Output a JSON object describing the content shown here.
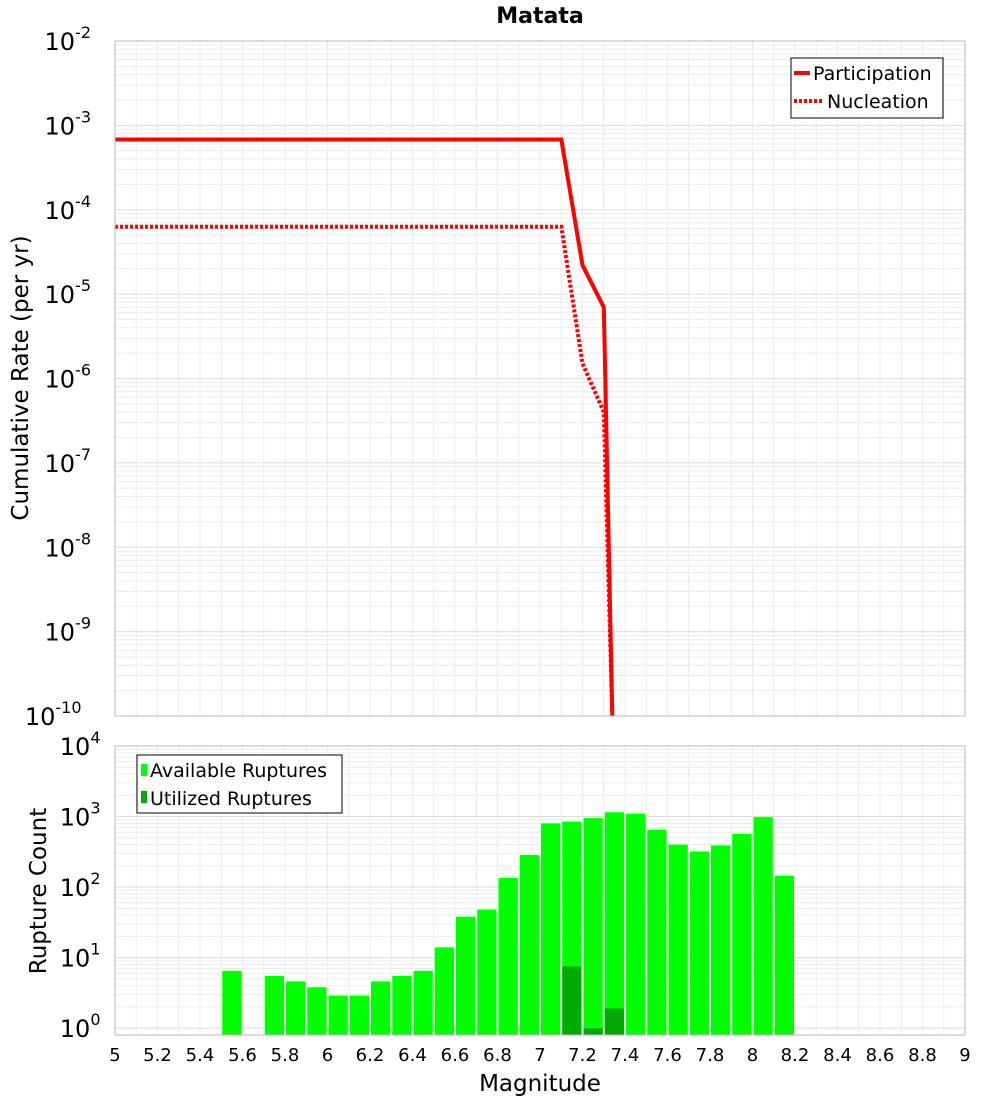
{
  "chart_data": [
    {
      "type": "line",
      "title": "Matata",
      "xlabel": "",
      "ylabel": "Cumulative Rate (per yr)",
      "y_scale": "log",
      "ylim": [
        1e-10,
        0.01
      ],
      "xlim": [
        5,
        9
      ],
      "grid": true,
      "legend_position": "top-right",
      "y_tick_exponents": [
        "-10",
        "-9",
        "-8",
        "-7",
        "-6",
        "-5",
        "-4",
        "-3",
        "-2"
      ],
      "y_tick_base": "10",
      "series": [
        {
          "name": "Participation",
          "style": "solid",
          "color": "#ff0000",
          "x": [
            5.0,
            7.1,
            7.2,
            7.3,
            7.34
          ],
          "y": [
            0.00068,
            0.00068,
            2.2e-05,
            7e-06,
            1e-10
          ]
        },
        {
          "name": "Nucleation",
          "style": "dotted",
          "color": "#ff0000",
          "x": [
            5.0,
            7.1,
            7.2,
            7.3,
            7.34
          ],
          "y": [
            6.3e-05,
            6.3e-05,
            1.5e-06,
            4e-07,
            1e-10
          ]
        }
      ]
    },
    {
      "type": "bar",
      "xlabel": "Magnitude",
      "ylabel": "Rupture Count",
      "y_scale": "log",
      "ylim": [
        0.8,
        10000
      ],
      "xlim": [
        5,
        9
      ],
      "grid": true,
      "legend_position": "top-left",
      "bar_width": 0.1,
      "y_tick_exponents": [
        "0",
        "1",
        "2",
        "3",
        "4"
      ],
      "y_tick_base": "10",
      "x_ticks": [
        "5",
        "5.2",
        "5.4",
        "5.6",
        "5.8",
        "6",
        "6.2",
        "6.4",
        "6.6",
        "6.8",
        "7",
        "7.2",
        "7.4",
        "7.6",
        "7.8",
        "8",
        "8.2",
        "8.4",
        "8.6",
        "8.8",
        "9"
      ],
      "series": [
        {
          "name": "Available Ruptures",
          "color": "#00ff00",
          "x": [
            5.55,
            5.75,
            5.85,
            5.95,
            6.05,
            6.15,
            6.25,
            6.35,
            6.45,
            6.55,
            6.65,
            6.75,
            6.85,
            6.95,
            7.05,
            7.15,
            7.25,
            7.35,
            7.45,
            7.55,
            7.65,
            7.75,
            7.85,
            7.95,
            8.05,
            8.15
          ],
          "values": [
            6.5,
            5.5,
            4.6,
            3.8,
            2.9,
            2.9,
            4.6,
            5.5,
            6.5,
            14,
            38,
            48,
            135,
            285,
            800,
            850,
            950,
            1150,
            1100,
            650,
            400,
            320,
            390,
            570,
            980,
            145
          ]
        },
        {
          "name": "Utilized Ruptures",
          "color": "#00aa00",
          "x": [
            7.15,
            7.25,
            7.35
          ],
          "values": [
            7.5,
            1,
            1.9
          ]
        }
      ]
    }
  ]
}
